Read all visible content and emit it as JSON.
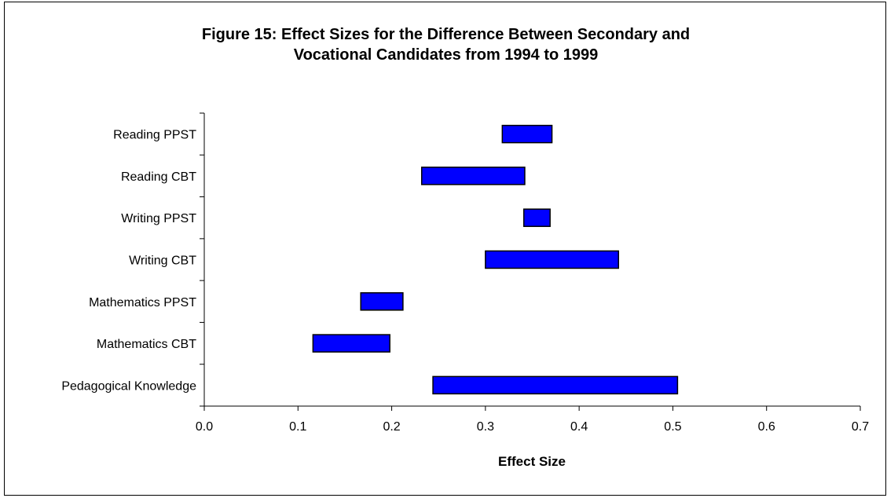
{
  "chart_data": {
    "type": "bar",
    "orientation": "horizontal",
    "title": [
      "Figure 15: Effect Sizes for the Difference Between Secondary and",
      "Vocational Candidates from 1994 to 1999"
    ],
    "xlabel": "Effect Size",
    "ylabel": "",
    "xlim": [
      0.0,
      0.7
    ],
    "x_ticks": [
      "0.0",
      "0.1",
      "0.2",
      "0.3",
      "0.4",
      "0.5",
      "0.6",
      "0.7"
    ],
    "categories": [
      "Reading PPST",
      "Reading CBT",
      "Writing PPST",
      "Writing CBT",
      "Mathematics PPST",
      "Mathematics CBT",
      "Pedagogical Knowledge"
    ],
    "ranges": [
      [
        0.318,
        0.371
      ],
      [
        0.232,
        0.342
      ],
      [
        0.341,
        0.369
      ],
      [
        0.3,
        0.442
      ],
      [
        0.167,
        0.212
      ],
      [
        0.116,
        0.198
      ],
      [
        0.244,
        0.505
      ]
    ],
    "bar_color": "#0000FF",
    "grid": false,
    "legend": "none"
  }
}
